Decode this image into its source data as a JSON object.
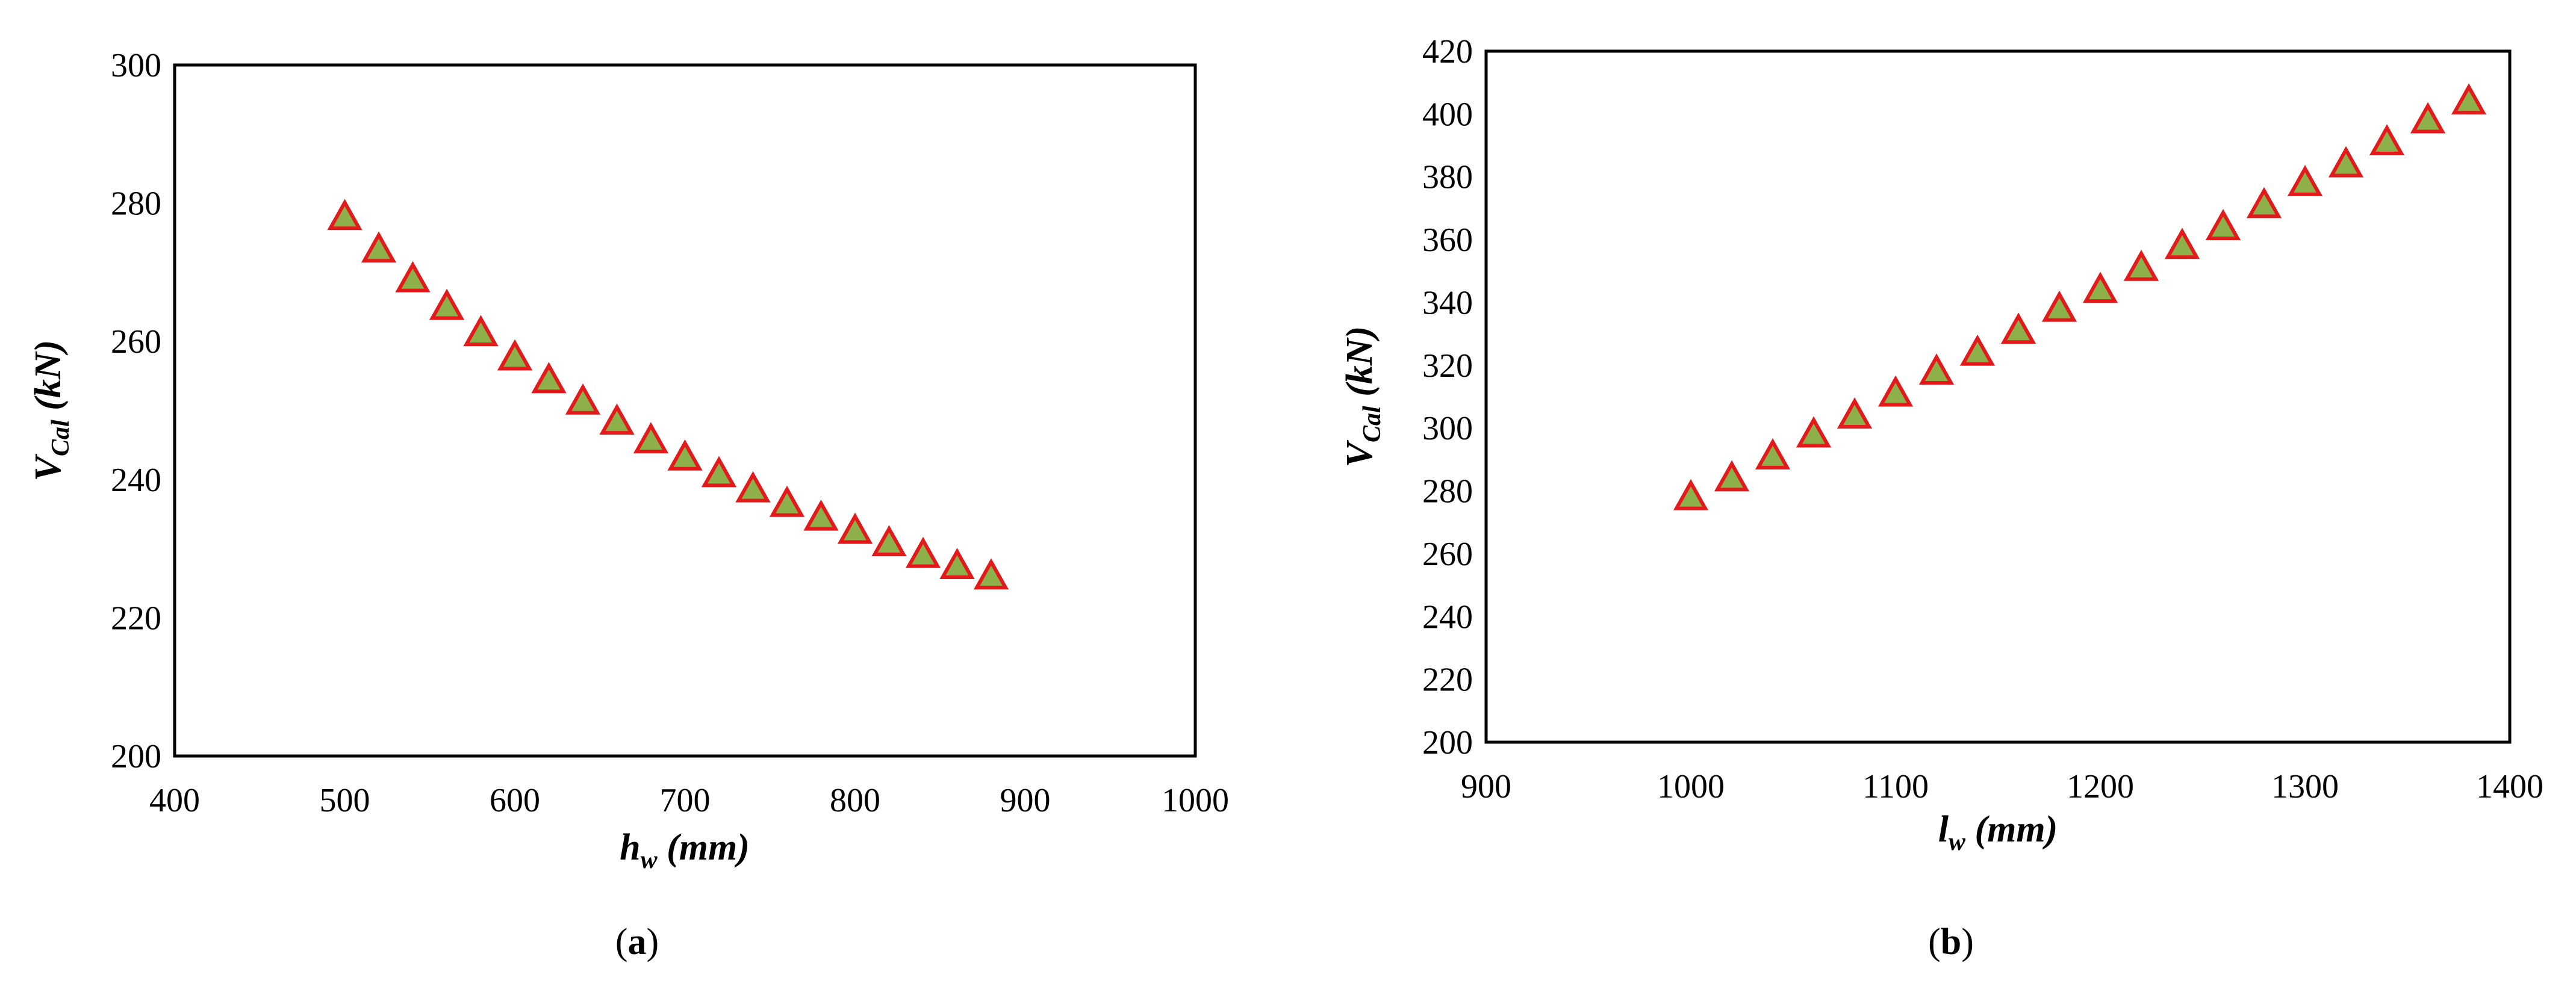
{
  "chart_data": [
    {
      "type": "scatter",
      "panel_label_prefix": "(",
      "panel_label_letter": "a",
      "panel_label_suffix": ")",
      "title": "",
      "xlabel_main": "h",
      "xlabel_sub": "w",
      "xlabel_rest": " (mm)",
      "ylabel_main": "V",
      "ylabel_sub": "Cal",
      "ylabel_rest": " (kN)",
      "xlim": [
        400,
        1000
      ],
      "ylim": [
        200,
        300
      ],
      "x_ticks": [
        400,
        500,
        600,
        700,
        800,
        900,
        1000
      ],
      "y_ticks": [
        200,
        220,
        240,
        260,
        280,
        300
      ],
      "grid": false,
      "marker": "triangle",
      "marker_fill": "#8DB04A",
      "marker_edge": "#E31A1C",
      "x": [
        500,
        520,
        540,
        560,
        580,
        600,
        620,
        640,
        660,
        680,
        700,
        720,
        740,
        760,
        780,
        800,
        820,
        840,
        860,
        880
      ],
      "y": [
        278.0,
        273.3,
        269.0,
        265.0,
        261.2,
        257.7,
        254.4,
        251.3,
        248.4,
        245.7,
        243.2,
        240.8,
        238.6,
        236.5,
        234.5,
        232.6,
        230.8,
        229.1,
        227.5,
        226.0
      ]
    },
    {
      "type": "scatter",
      "panel_label_prefix": "(",
      "panel_label_letter": "b",
      "panel_label_suffix": ")",
      "title": "",
      "xlabel_main": "l",
      "xlabel_sub": "w",
      "xlabel_rest": " (mm)",
      "ylabel_main": "V",
      "ylabel_sub": "Cal",
      "ylabel_rest": " (kN)",
      "xlim": [
        900,
        1400
      ],
      "ylim": [
        200,
        420
      ],
      "x_ticks": [
        900,
        1000,
        1100,
        1200,
        1300,
        1400
      ],
      "y_ticks": [
        200,
        220,
        240,
        260,
        280,
        300,
        320,
        340,
        360,
        380,
        400,
        420
      ],
      "grid": false,
      "marker": "triangle",
      "marker_fill": "#8DB04A",
      "marker_edge": "#E31A1C",
      "x": [
        1000,
        1020,
        1040,
        1060,
        1080,
        1100,
        1120,
        1140,
        1160,
        1180,
        1200,
        1220,
        1240,
        1260,
        1280,
        1300,
        1320,
        1340,
        1360,
        1380
      ],
      "y": [
        278,
        284,
        291,
        298,
        304,
        311,
        318,
        324,
        331,
        338,
        344,
        351,
        358,
        364,
        371,
        378,
        384,
        391,
        398,
        404
      ]
    }
  ]
}
